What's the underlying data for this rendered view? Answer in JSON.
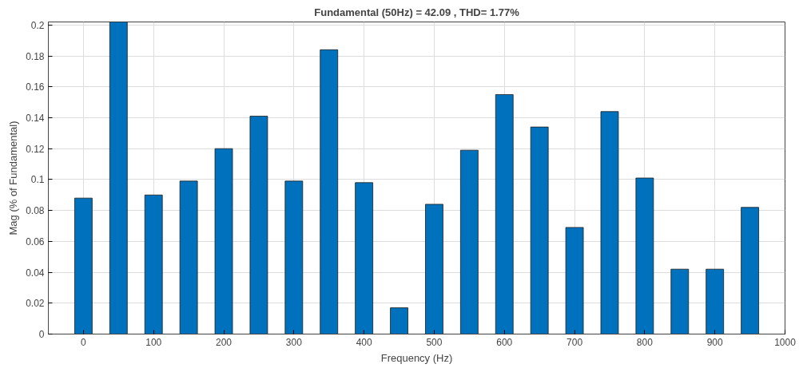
{
  "chart_data": {
    "type": "bar",
    "title": "Fundamental (50Hz) = 42.09 , THD= 1.77%",
    "xlabel": "Frequency (Hz)",
    "ylabel": "Mag (% of Fundamental)",
    "x": [
      0,
      50,
      100,
      150,
      200,
      250,
      300,
      350,
      400,
      450,
      500,
      550,
      600,
      650,
      700,
      750,
      800,
      850,
      900,
      950
    ],
    "values": [
      0.088,
      0.202,
      0.09,
      0.099,
      0.12,
      0.141,
      0.099,
      0.184,
      0.098,
      0.017,
      0.084,
      0.119,
      0.155,
      0.134,
      0.069,
      0.144,
      0.101,
      0.042,
      0.042,
      0.082
    ],
    "color": "#0072bd",
    "xlim": [
      -50,
      1000
    ],
    "xticks": [
      0,
      100,
      200,
      300,
      400,
      500,
      600,
      700,
      800,
      900,
      1000
    ],
    "ylim": [
      0,
      0.202
    ],
    "yticks": [
      0,
      0.02,
      0.04,
      0.06,
      0.08,
      {
        "value": 0.1,
        "label": "0.1"
      },
      0.12,
      0.14,
      0.16,
      0.18,
      {
        "value": 0.2,
        "label": "0.2"
      }
    ],
    "grid": true
  }
}
